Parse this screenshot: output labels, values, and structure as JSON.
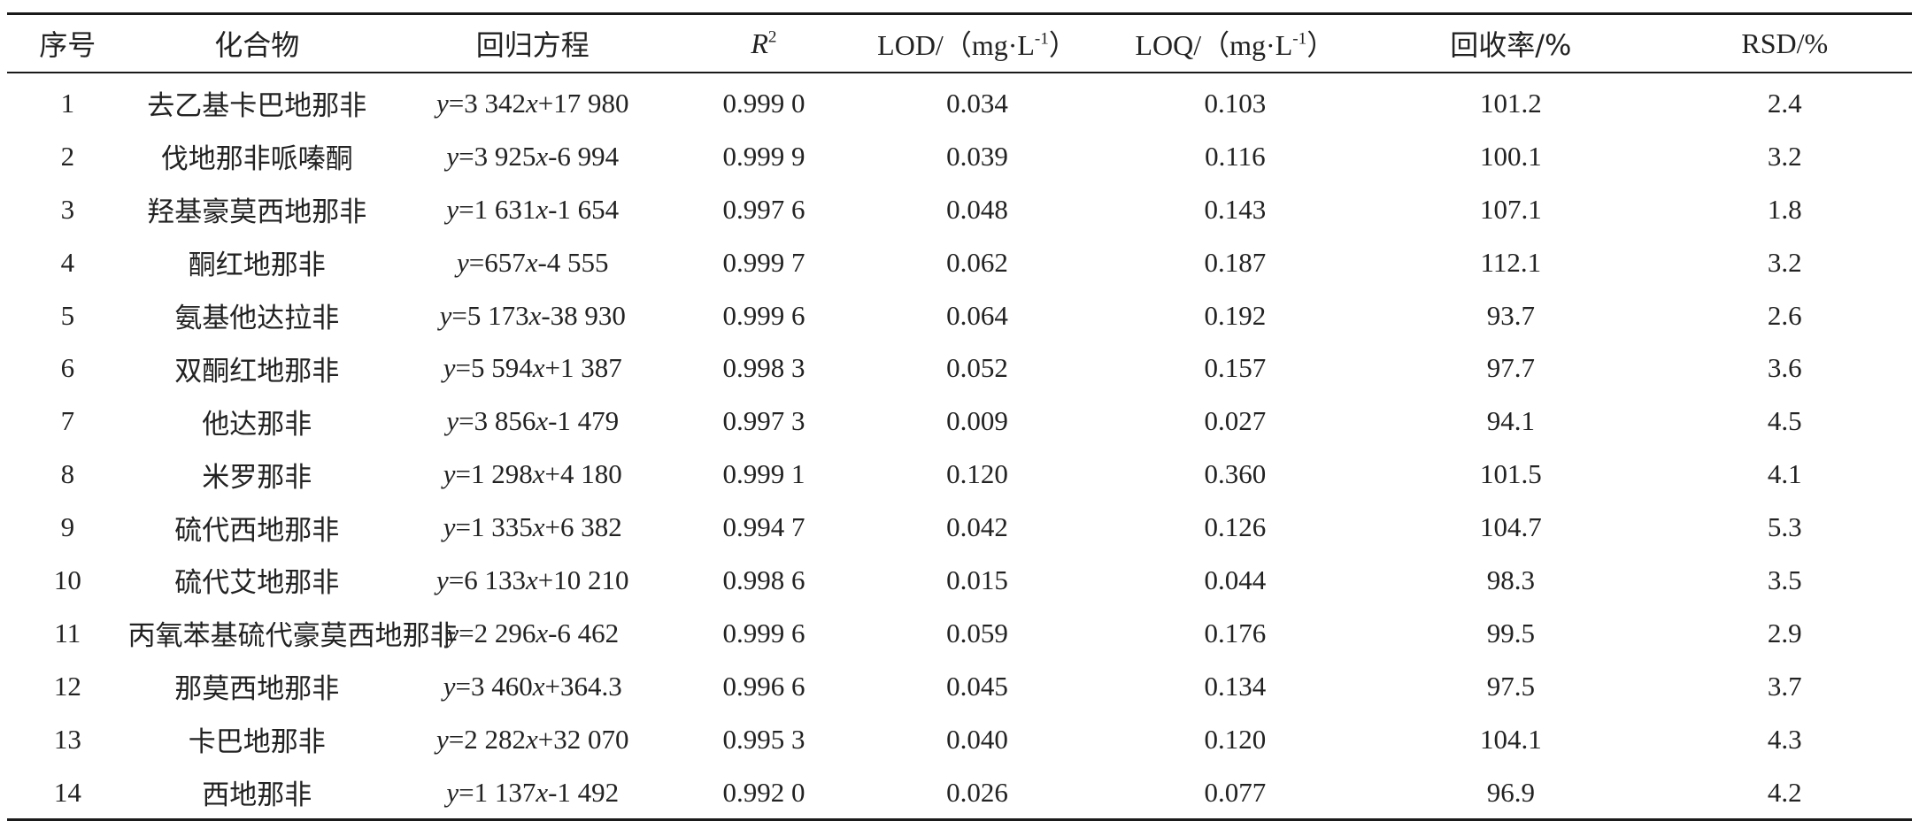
{
  "table": {
    "headers": {
      "index": "序号",
      "compound": "化合物",
      "equation": "回归方程",
      "r2_letter": "R",
      "r2_exp": "2",
      "lod_prefix": "LOD/（mg·L",
      "lod_exp": "-1",
      "lod_suffix": "）",
      "loq_prefix": "LOQ/（mg·L",
      "loq_exp": "-1",
      "loq_suffix": "）",
      "recovery": "回收率/%",
      "rsd": "RSD/%"
    },
    "rows": [
      {
        "no": "1",
        "name": "去乙基卡巴地那非",
        "slope": "3 342",
        "intercept": "+17 980",
        "r2": "0.999 0",
        "lod": "0.034",
        "loq": "0.103",
        "recovery": "101.2",
        "rsd": "2.4"
      },
      {
        "no": "2",
        "name": "伐地那非哌嗪酮",
        "slope": "3 925",
        "intercept": "-6 994",
        "r2": "0.999 9",
        "lod": "0.039",
        "loq": "0.116",
        "recovery": "100.1",
        "rsd": "3.2"
      },
      {
        "no": "3",
        "name": "羟基豪莫西地那非",
        "slope": "1 631",
        "intercept": "-1 654",
        "r2": "0.997 6",
        "lod": "0.048",
        "loq": "0.143",
        "recovery": "107.1",
        "rsd": "1.8"
      },
      {
        "no": "4",
        "name": "酮红地那非",
        "slope": "657",
        "intercept": "-4 555",
        "r2": "0.999 7",
        "lod": "0.062",
        "loq": "0.187",
        "recovery": "112.1",
        "rsd": "3.2"
      },
      {
        "no": "5",
        "name": "氨基他达拉非",
        "slope": "5 173",
        "intercept": "-38 930",
        "r2": "0.999 6",
        "lod": "0.064",
        "loq": "0.192",
        "recovery": "93.7",
        "rsd": "2.6"
      },
      {
        "no": "6",
        "name": "双酮红地那非",
        "slope": "5 594",
        "intercept": "+1 387",
        "r2": "0.998 3",
        "lod": "0.052",
        "loq": "0.157",
        "recovery": "97.7",
        "rsd": "3.6"
      },
      {
        "no": "7",
        "name": "他达那非",
        "slope": "3 856",
        "intercept": "-1 479",
        "r2": "0.997 3",
        "lod": "0.009",
        "loq": "0.027",
        "recovery": "94.1",
        "rsd": "4.5"
      },
      {
        "no": "8",
        "name": "米罗那非",
        "slope": "1 298",
        "intercept": "+4 180",
        "r2": "0.999 1",
        "lod": "0.120",
        "loq": "0.360",
        "recovery": "101.5",
        "rsd": "4.1"
      },
      {
        "no": "9",
        "name": "硫代西地那非",
        "slope": "1 335",
        "intercept": "+6 382",
        "r2": "0.994 7",
        "lod": "0.042",
        "loq": "0.126",
        "recovery": "104.7",
        "rsd": "5.3"
      },
      {
        "no": "10",
        "name": "硫代艾地那非",
        "slope": "6 133",
        "intercept": "+10 210",
        "r2": "0.998 6",
        "lod": "0.015",
        "loq": "0.044",
        "recovery": "98.3",
        "rsd": "3.5"
      },
      {
        "no": "11",
        "name": "丙氧苯基硫代豪莫西地那非",
        "slope": "2 296",
        "intercept": "-6 462",
        "r2": "0.999 6",
        "lod": "0.059",
        "loq": "0.176",
        "recovery": "99.5",
        "rsd": "2.9"
      },
      {
        "no": "12",
        "name": "那莫西地那非",
        "slope": "3 460",
        "intercept": "+364.3",
        "r2": "0.996 6",
        "lod": "0.045",
        "loq": "0.134",
        "recovery": "97.5",
        "rsd": "3.7"
      },
      {
        "no": "13",
        "name": "卡巴地那非",
        "slope": "2 282",
        "intercept": "+32 070",
        "r2": "0.995 3",
        "lod": "0.040",
        "loq": "0.120",
        "recovery": "104.1",
        "rsd": "4.3"
      },
      {
        "no": "14",
        "name": "西地那非",
        "slope": "1 137",
        "intercept": "-1 492",
        "r2": "0.992 0",
        "lod": "0.026",
        "loq": "0.077",
        "recovery": "96.9",
        "rsd": "4.2"
      }
    ],
    "eq_y": "y",
    "eq_eq": "=",
    "eq_x": "x"
  }
}
